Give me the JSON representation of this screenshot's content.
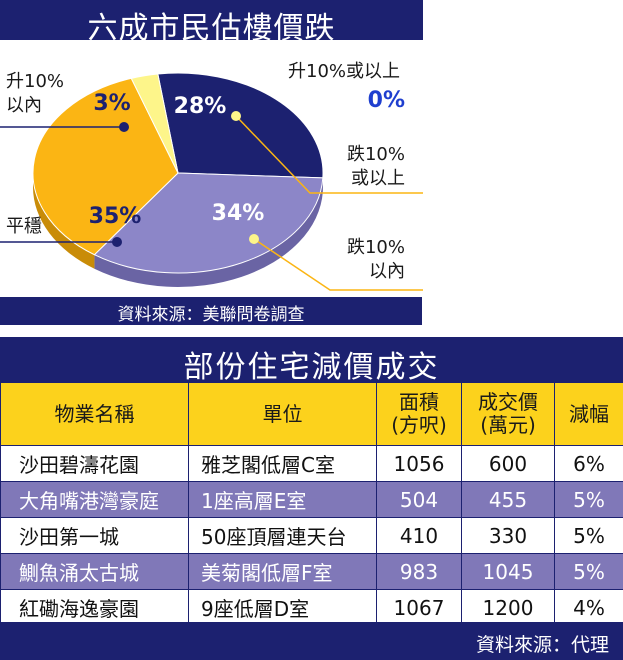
{
  "pie_chart": {
    "title": "六成市民估樓價跌",
    "source": "資料來源：美聯問卷調查",
    "legend": [
      {
        "line1": "升10%或以上",
        "line2": "",
        "pct": "0%"
      },
      {
        "line1": "跌10%",
        "line2": "或以上",
        "pct": "28%"
      },
      {
        "line1": "跌10%",
        "line2": "以內",
        "pct": "34%"
      },
      {
        "line1": "平穩",
        "line2": "",
        "pct": "35%"
      },
      {
        "line1": "升10%",
        "line2": "以內",
        "pct": "3%"
      }
    ]
  },
  "chart_data": {
    "type": "pie",
    "title": "六成市民估樓價跌",
    "categories": [
      "升10%或以上",
      "跌10%或以上",
      "跌10%以內",
      "平穩",
      "升10%以內"
    ],
    "values": [
      0,
      28,
      34,
      35,
      3
    ],
    "colors": [
      "#1c2170",
      "#1c2170",
      "#8c86c8",
      "#fbb514",
      "#fdf58a"
    ]
  },
  "table": {
    "title": "部份住宅減價成交",
    "headers": [
      "物業名稱",
      "單位",
      "面積\n(方呎)",
      "成交價\n(萬元)",
      "減幅"
    ],
    "rows": [
      [
        "沙田碧濤花園",
        "雅芝閣低層C室",
        "1056",
        "600",
        "6%"
      ],
      [
        "大角嘴港灣豪庭",
        "1座高層E室",
        "504",
        "455",
        "5%"
      ],
      [
        "沙田第一城",
        "50座頂層連天台",
        "410",
        "330",
        "5%"
      ],
      [
        "鰂魚涌太古城",
        "美菊閣低層F室",
        "983",
        "1045",
        "5%"
      ],
      [
        "紅磡海逸豪園",
        "9座低層D室",
        "1067",
        "1200",
        "4%"
      ]
    ],
    "source": "資料來源：代理"
  },
  "colors": {
    "navy": "#1c2170",
    "lavender": "#8c86c8",
    "orange": "#fbb514",
    "pale_yellow": "#fdf58a",
    "header_yellow": "#fcd21c",
    "row_purple": "#8078b8"
  }
}
